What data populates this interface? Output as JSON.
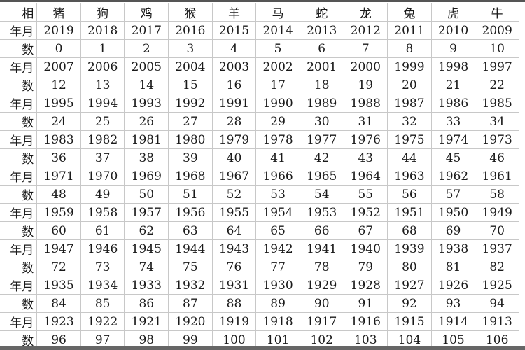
{
  "table": {
    "header": {
      "label": "相",
      "values": [
        "猪",
        "狗",
        "鸡",
        "猴",
        "羊",
        "马",
        "蛇",
        "龙",
        "兔",
        "虎",
        "牛"
      ]
    },
    "rows": [
      {
        "label": "年月",
        "values": [
          "2019",
          "2018",
          "2017",
          "2016",
          "2015",
          "2014",
          "2013",
          "2012",
          "2011",
          "2010",
          "2009"
        ]
      },
      {
        "label": "数",
        "values": [
          "0",
          "1",
          "2",
          "3",
          "4",
          "5",
          "6",
          "7",
          "8",
          "9",
          "10"
        ]
      },
      {
        "label": "年月",
        "values": [
          "2007",
          "2006",
          "2005",
          "2004",
          "2003",
          "2002",
          "2001",
          "2000",
          "1999",
          "1998",
          "1997"
        ]
      },
      {
        "label": "数",
        "values": [
          "12",
          "13",
          "14",
          "15",
          "16",
          "17",
          "18",
          "19",
          "20",
          "21",
          "22"
        ]
      },
      {
        "label": "年月",
        "values": [
          "1995",
          "1994",
          "1993",
          "1992",
          "1991",
          "1990",
          "1989",
          "1988",
          "1987",
          "1986",
          "1985"
        ]
      },
      {
        "label": "数",
        "values": [
          "24",
          "25",
          "26",
          "27",
          "28",
          "29",
          "30",
          "31",
          "32",
          "33",
          "34"
        ]
      },
      {
        "label": "年月",
        "values": [
          "1983",
          "1982",
          "1981",
          "1980",
          "1979",
          "1978",
          "1977",
          "1976",
          "1975",
          "1974",
          "1973"
        ]
      },
      {
        "label": "数",
        "values": [
          "36",
          "37",
          "38",
          "39",
          "40",
          "41",
          "42",
          "43",
          "44",
          "45",
          "46"
        ]
      },
      {
        "label": "年月",
        "values": [
          "1971",
          "1970",
          "1969",
          "1968",
          "1967",
          "1966",
          "1965",
          "1964",
          "1963",
          "1962",
          "1961"
        ]
      },
      {
        "label": "数",
        "values": [
          "48",
          "49",
          "50",
          "51",
          "52",
          "53",
          "54",
          "55",
          "56",
          "57",
          "58"
        ]
      },
      {
        "label": "年月",
        "values": [
          "1959",
          "1958",
          "1957",
          "1956",
          "1955",
          "1954",
          "1953",
          "1952",
          "1951",
          "1950",
          "1949"
        ]
      },
      {
        "label": "数",
        "values": [
          "60",
          "61",
          "62",
          "63",
          "64",
          "65",
          "66",
          "67",
          "68",
          "69",
          "70"
        ]
      },
      {
        "label": "年月",
        "values": [
          "1947",
          "1946",
          "1945",
          "1944",
          "1943",
          "1942",
          "1941",
          "1940",
          "1939",
          "1938",
          "1937"
        ]
      },
      {
        "label": "数",
        "values": [
          "72",
          "73",
          "74",
          "75",
          "76",
          "77",
          "78",
          "79",
          "80",
          "81",
          "82"
        ]
      },
      {
        "label": "年月",
        "values": [
          "1935",
          "1934",
          "1933",
          "1932",
          "1931",
          "1930",
          "1929",
          "1928",
          "1927",
          "1926",
          "1925"
        ]
      },
      {
        "label": "数",
        "values": [
          "84",
          "85",
          "86",
          "87",
          "88",
          "89",
          "90",
          "91",
          "92",
          "93",
          "94"
        ]
      },
      {
        "label": "年月",
        "values": [
          "1923",
          "1922",
          "1921",
          "1920",
          "1919",
          "1918",
          "1917",
          "1916",
          "1915",
          "1914",
          "1913"
        ]
      },
      {
        "label": "数",
        "values": [
          "96",
          "97",
          "98",
          "99",
          "100",
          "101",
          "102",
          "103",
          "104",
          "105",
          "106"
        ]
      }
    ]
  }
}
